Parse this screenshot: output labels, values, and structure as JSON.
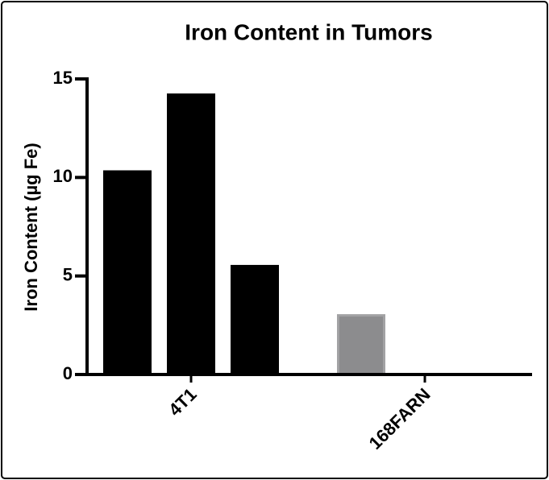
{
  "chart_data": {
    "type": "grouped-bar",
    "title": "Iron Content in Tumors",
    "y_label": "Iron Content (µg Fe)",
    "groups": [
      {
        "label": "4T1",
        "values": [
          10.3,
          14.2,
          5.5
        ],
        "color": "#000000"
      },
      {
        "label": "168FARN",
        "values": [
          3.0,
          0,
          0
        ],
        "color": "#8c8c8e"
      }
    ],
    "ylim": [
      0,
      15
    ],
    "yticks": [
      0,
      5,
      10,
      15
    ]
  }
}
